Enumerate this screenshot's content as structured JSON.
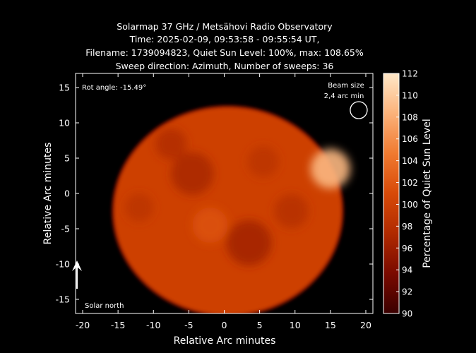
{
  "chart_data": {
    "type": "heatmap",
    "title_lines": [
      "Solarmap 37 GHz / Metsähovi Radio Observatory",
      "Time: 2025-02-09, 09:53:58 - 09:55:54 UT,",
      "Filename: 1739094823, Quiet Sun Level: 100%, max: 108.65%",
      "Sweep direction: Azimuth, Number of sweeps: 36"
    ],
    "xlabel": "Relative Arc minutes",
    "ylabel": "Relative Arc minutes",
    "xlim": [
      -21,
      21
    ],
    "ylim": [
      -17,
      17
    ],
    "x_ticks": [
      -20,
      -15,
      -10,
      -5,
      0,
      5,
      10,
      15,
      20
    ],
    "y_ticks": [
      -15,
      -10,
      -5,
      0,
      5,
      10,
      15
    ],
    "colorbar": {
      "label": "Percentage of Quiet Sun Level",
      "range": [
        90,
        112
      ],
      "ticks": [
        90,
        92,
        94,
        96,
        98,
        100,
        102,
        104,
        106,
        108,
        110,
        112
      ],
      "colors": [
        "#3a0000",
        "#7a0a00",
        "#b02a00",
        "#d84a08",
        "#f07a30",
        "#fbb27a",
        "#ffe8c8"
      ]
    },
    "disk": {
      "center": [
        0.5,
        -2.5
      ],
      "radius_x": 16.2,
      "radius_y": 14.8,
      "base_level": 100
    },
    "features": [
      {
        "x": 15.0,
        "y": 3.5,
        "level": 108.65,
        "r": 2.8
      },
      {
        "x": -4.5,
        "y": 2.8,
        "level": 97,
        "r": 3.0
      },
      {
        "x": 3.5,
        "y": -7.0,
        "level": 96.5,
        "r": 3.2
      },
      {
        "x": -7.5,
        "y": 7.0,
        "level": 97.5,
        "r": 2.2
      },
      {
        "x": 9.5,
        "y": -2.5,
        "level": 98,
        "r": 2.4
      },
      {
        "x": 5.5,
        "y": 4.5,
        "level": 98.5,
        "r": 2.2
      },
      {
        "x": -12.0,
        "y": -2.0,
        "level": 98.5,
        "r": 2.0
      },
      {
        "x": -2.0,
        "y": -4.5,
        "level": 101.5,
        "r": 2.5
      }
    ],
    "annotations": {
      "rot_angle": "Rot angle: -15.49°",
      "beam_size_label": "Beam size",
      "beam_size_value": "2,4 arc min",
      "beam": {
        "x": 19,
        "y": 11.8,
        "diameter": 2.4
      },
      "solar_north_label": "Solar north",
      "north_arrow": {
        "x": -20.8,
        "y_start": -13.5,
        "y_end": -9.5
      }
    }
  }
}
